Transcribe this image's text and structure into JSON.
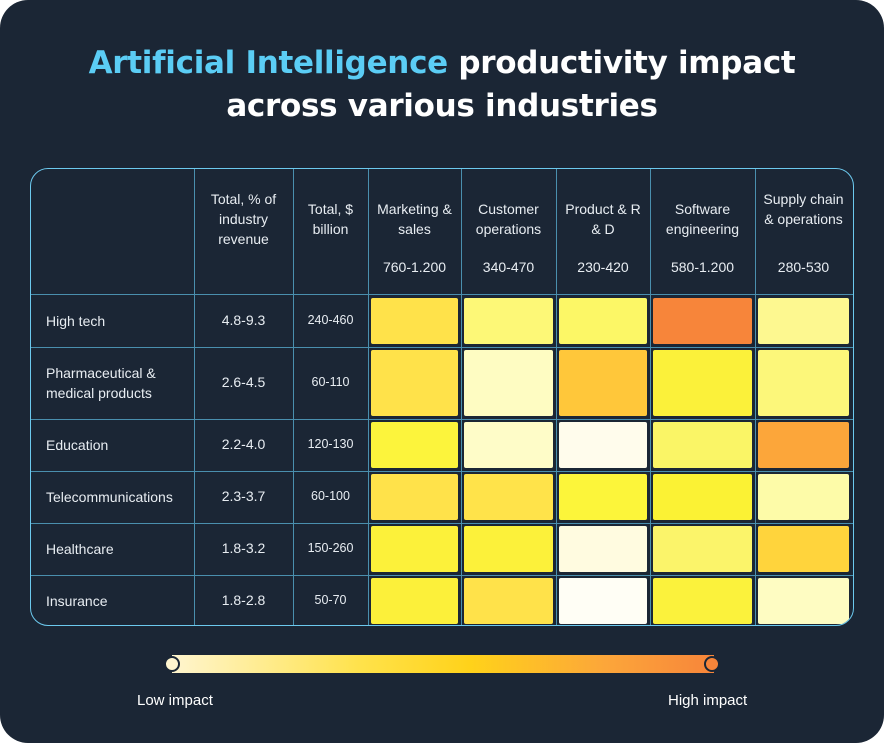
{
  "title": {
    "highlight": "Artificial Intelligence",
    "rest_line1": " productivity impact",
    "line2": "across various industries"
  },
  "chart_data": {
    "type": "heatmap",
    "column_headers": {
      "revenue_pct": "Total, % of industry revenue",
      "billion": "Total, $ billion"
    },
    "functions": [
      {
        "name": "Marketing & sales",
        "range": "760-1.200"
      },
      {
        "name": "Customer operations",
        "range": "340-470"
      },
      {
        "name": "Product & R & D",
        "range": "230-420"
      },
      {
        "name": "Software engineering",
        "range": "580-1.200"
      },
      {
        "name": "Supply chain & operations",
        "range": "280-530"
      }
    ],
    "rows": [
      {
        "industry": "High tech",
        "revenue_pct": "4.8-9.3",
        "billion": "240-460",
        "impact": [
          "#ffe24a",
          "#fdf877",
          "#fcf766",
          "#f7853a",
          "#fdf890"
        ]
      },
      {
        "industry": "Pharmaceutical & medical products",
        "revenue_pct": "2.6-4.5",
        "billion": "60-110",
        "impact": [
          "#ffe24a",
          "#fefcc2",
          "#ffc73a",
          "#fbf13a",
          "#fcf77a"
        ]
      },
      {
        "industry": "Education",
        "revenue_pct": "2.2-4.0",
        "billion": "120-130",
        "impact": [
          "#fcf43c",
          "#fefcc8",
          "#fffcec",
          "#faf566",
          "#fca63a"
        ]
      },
      {
        "industry": "Telecommunications",
        "revenue_pct": "2.3-3.7",
        "billion": "60-100",
        "impact": [
          "#ffe24a",
          "#ffe34a",
          "#fcf53a",
          "#fbf234",
          "#fdfba8"
        ]
      },
      {
        "industry": "Healthcare",
        "revenue_pct": "1.8-3.2",
        "billion": "150-260",
        "impact": [
          "#fcf13a",
          "#fcf13a",
          "#fffbe0",
          "#fbf46a",
          "#ffd43c"
        ]
      },
      {
        "industry": "Insurance",
        "revenue_pct": "1.8-2.8",
        "billion": "50-70",
        "impact": [
          "#fcf03a",
          "#ffe24a",
          "#fffef5",
          "#fbf23c",
          "#fefcc2"
        ]
      }
    ],
    "legend": {
      "low": "Low impact",
      "high": "High impact"
    },
    "colors": {
      "low": "#fff5cf",
      "high": "#f7853a",
      "accent": "#5bcdf5",
      "background": "#1b2635"
    }
  }
}
